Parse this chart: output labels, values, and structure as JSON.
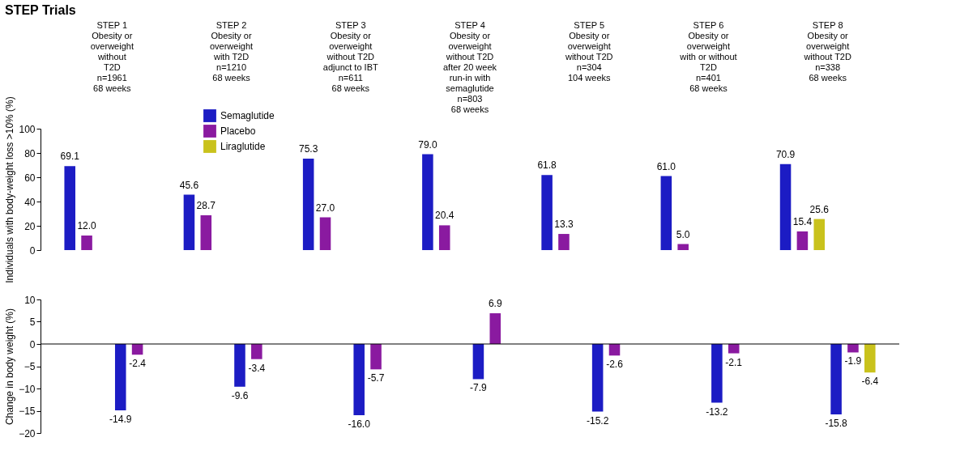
{
  "chart_data": [
    {
      "type": "bar",
      "title": "STEP Trials",
      "ylabel": "Individuals with body-weight loss >10% (%)",
      "categories": [
        "STEP 1\n\nObesity or\noverweight\nwithout\nT2D\nn=1961\n68 weeks",
        "STEP 2\n\nObesity or\noverweight\nwith T2D\nn=1210\n68 weeks",
        "STEP 3\n\nObesity or\noverweight\nwithout T2D\nadjunct to IBT\nn=611\n68 weeks",
        "STEP 4\n\nObesity or\noverweight\nwithout T2D\nafter 20 week\nrun-in with\nsemaglutide\nn=803\n68 weeks",
        "STEP 5\n\nObesity or\noverweight\nwithout T2D\nn=304\n104 weeks",
        "STEP 6\n\nObesity or\noverweight\nwith or without\nT2D\nn=401\n68 weeks",
        "STEP 8\n\nObesity or\noverweight\nwithout T2D\nn=338\n68 weeks"
      ],
      "series": [
        {
          "name": "Semaglutide",
          "color": "#1c1cc4",
          "values": [
            69.1,
            45.6,
            75.3,
            79.0,
            61.8,
            61.0,
            70.9
          ]
        },
        {
          "name": "Placebo",
          "color": "#8a1aa0",
          "values": [
            12.0,
            28.7,
            27.0,
            20.4,
            13.3,
            5.0,
            15.4
          ]
        },
        {
          "name": "Liraglutide",
          "color": "#c9c21c",
          "values": [
            null,
            null,
            null,
            null,
            null,
            null,
            25.6
          ]
        }
      ],
      "value_labels": [
        [
          "69.1",
          "45.6",
          "75.3",
          "79.0",
          "61.8",
          "61.0",
          "70.9"
        ],
        [
          "12.0",
          "28.7",
          "27.0",
          "20.4",
          "13.3",
          "5.0",
          "15.4"
        ],
        [
          null,
          null,
          null,
          null,
          null,
          null,
          "25.6"
        ]
      ],
      "ylim": [
        0,
        100
      ],
      "yticks": [
        0,
        20,
        40,
        60,
        80,
        100
      ],
      "grid": false,
      "legend": "top left"
    },
    {
      "type": "bar",
      "ylabel": "Change in body weight (%)",
      "categories": [
        "STEP 1\n\nObesity or\noverweight\nwithout\nT2D\nn=1961\n68 weeks",
        "STEP 2\n\nObesity or\noverweight\nwith T2D\nn=1210\n68 weeks",
        "STEP 3\n\nObesity or\noverweight\nwithout T2D\nadjunct to IBT\nn=611\n68 weeks",
        "STEP 4\n\nObesity or\noverweight\nwithout T2D\nafter 20 week\nrun-in with\nsemaglutide\nn=803\n68 weeks",
        "STEP 5\n\nObesity or\noverweight\nwithout T2D\nn=304\n104 weeks",
        "STEP 6\n\nObesity or\noverweight\nwith or without\nT2D\nn=401\n68 weeks",
        "STEP 8\n\nObesity or\noverweight\nwithout T2D\nn=338\n68 weeks"
      ],
      "series": [
        {
          "color": "#1c1cc4",
          "values": [
            -14.9,
            -9.6,
            -16.0,
            -7.9,
            -15.2,
            -13.2,
            -15.8
          ]
        },
        {
          "color": "#8a1aa0",
          "values": [
            -2.4,
            -3.4,
            -5.7,
            6.9,
            -2.6,
            -2.1,
            -1.9
          ]
        },
        {
          "color": "#c9c21c",
          "values": [
            null,
            null,
            null,
            null,
            null,
            null,
            -6.4
          ]
        }
      ],
      "value_labels": [
        [
          "-14.9",
          "-9.6",
          "-16.0",
          "-7.9",
          "-15.2",
          "-13.2",
          "-15.8"
        ],
        [
          "-2.4",
          "-3.4",
          "-5.7",
          "6.9",
          "-2.6",
          "-2.1",
          "-1.9"
        ],
        [
          null,
          null,
          null,
          null,
          null,
          null,
          "-6.4"
        ]
      ],
      "ylim": [
        -20,
        10
      ],
      "yticks": [
        -20,
        -15,
        -10,
        -5,
        0,
        5,
        10
      ],
      "grid": false,
      "tick_labels": "y",
      "ref_lines": [
        {
          "axis": "y",
          "value": 0
        }
      ]
    }
  ]
}
